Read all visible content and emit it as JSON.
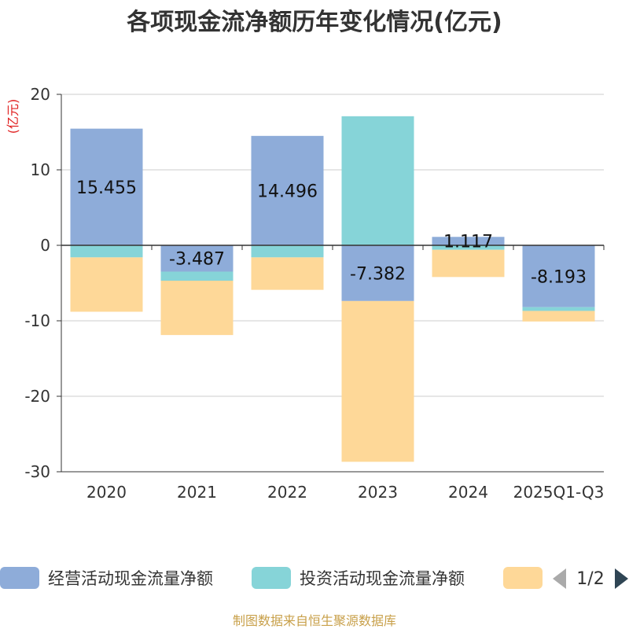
{
  "chart_data": {
    "type": "bar",
    "stacked": true,
    "title": "各项现金流净额历年变化情况(亿元)",
    "ylabel": "(亿元)",
    "ylim": [
      -30,
      20
    ],
    "yticks": [
      20,
      10,
      0,
      -10,
      -20,
      -30
    ],
    "grid": true,
    "categories": [
      "2020",
      "2021",
      "2022",
      "2023",
      "2024",
      "2025Q1-Q3"
    ],
    "series": [
      {
        "name": "经营活动现金流量净额",
        "color": "#8eacd9",
        "values": [
          15.455,
          -3.487,
          14.496,
          -7.382,
          1.117,
          -8.193
        ]
      },
      {
        "name": "投资活动现金流量净额",
        "color": "#86d4d8",
        "values": [
          -1.6,
          -1.2,
          -1.6,
          17.1,
          -0.6,
          -0.5
        ]
      },
      {
        "name": "",
        "color": "#fed898",
        "values": [
          -7.2,
          -7.2,
          -4.3,
          -21.3,
          -3.6,
          -1.4
        ]
      }
    ],
    "data_labels": [
      "15.455",
      "-3.487",
      "14.496",
      "-7.382",
      "1.117",
      "-8.193"
    ],
    "legend": {
      "position": "bottom",
      "page": "1/2"
    }
  },
  "colors": {
    "unit_label": "#e02020",
    "source": "#c8a04a",
    "axis": "#333333",
    "grid": "#cccccc",
    "pager_prev": "#aaaaaa",
    "pager_next": "#2f4554"
  },
  "source": "制图数据来自恒生聚源数据库"
}
